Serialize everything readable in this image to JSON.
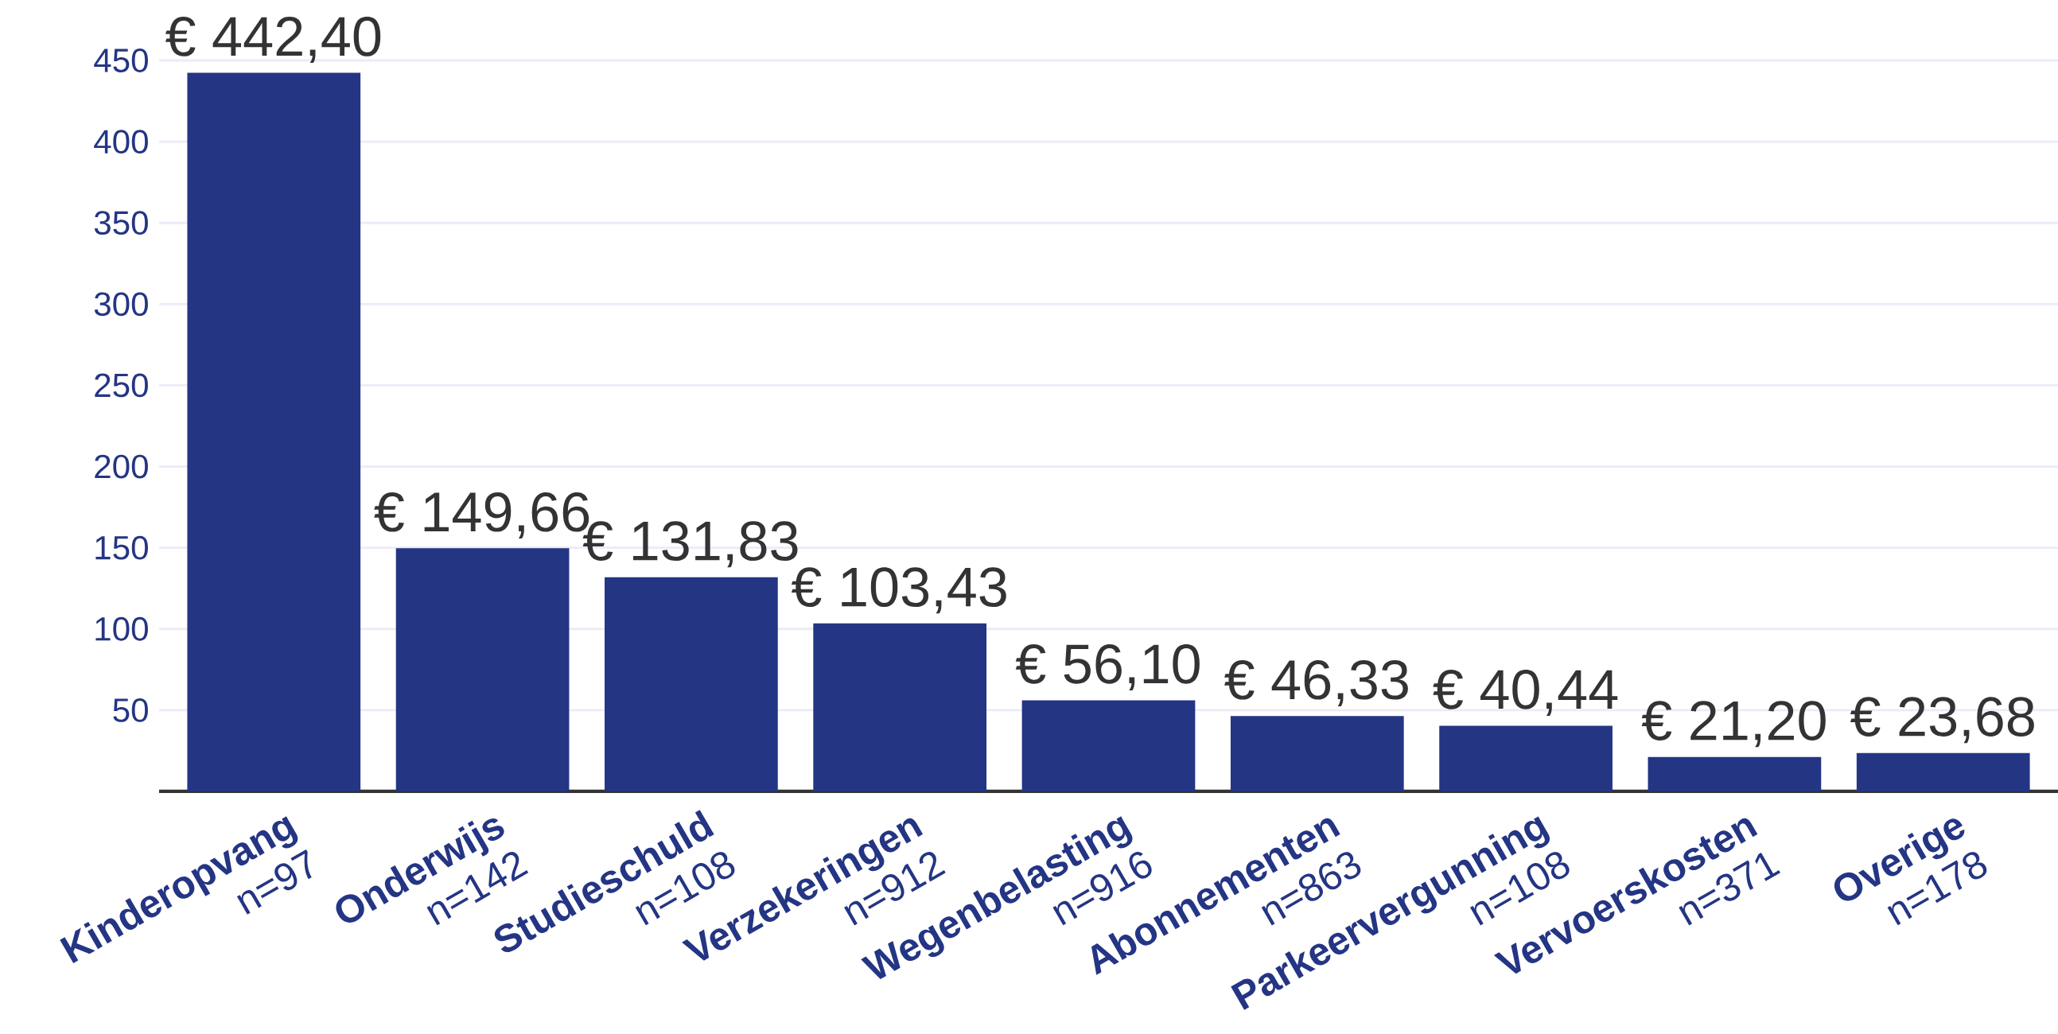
{
  "chart_data": {
    "type": "bar",
    "categories": [
      "Kinderopvang",
      "Onderwijs",
      "Studieschuld",
      "Verzekeringen",
      "Wegenbelasting",
      "Abonnementen",
      "Parkeervergunning",
      "Vervoerskosten",
      "Overige"
    ],
    "values": [
      442.4,
      149.66,
      131.83,
      103.43,
      56.1,
      46.33,
      40.44,
      21.2,
      23.68
    ],
    "value_labels": [
      "€ 442,40",
      "€ 149,66",
      "€ 131,83",
      "€ 103,43",
      "€ 56,10",
      "€ 46,33",
      "€ 40,44",
      "€ 21,20",
      "€ 23,68"
    ],
    "annotations": [
      "n=97",
      "n=142",
      "n=108",
      "n=912",
      "n=916",
      "n=863",
      "n=108",
      "n=371",
      "n=178"
    ],
    "color": "#243584",
    "ylim": [
      0,
      450
    ],
    "yticks": [
      50,
      100,
      150,
      200,
      250,
      300,
      350,
      400,
      450
    ],
    "grid": "y"
  }
}
